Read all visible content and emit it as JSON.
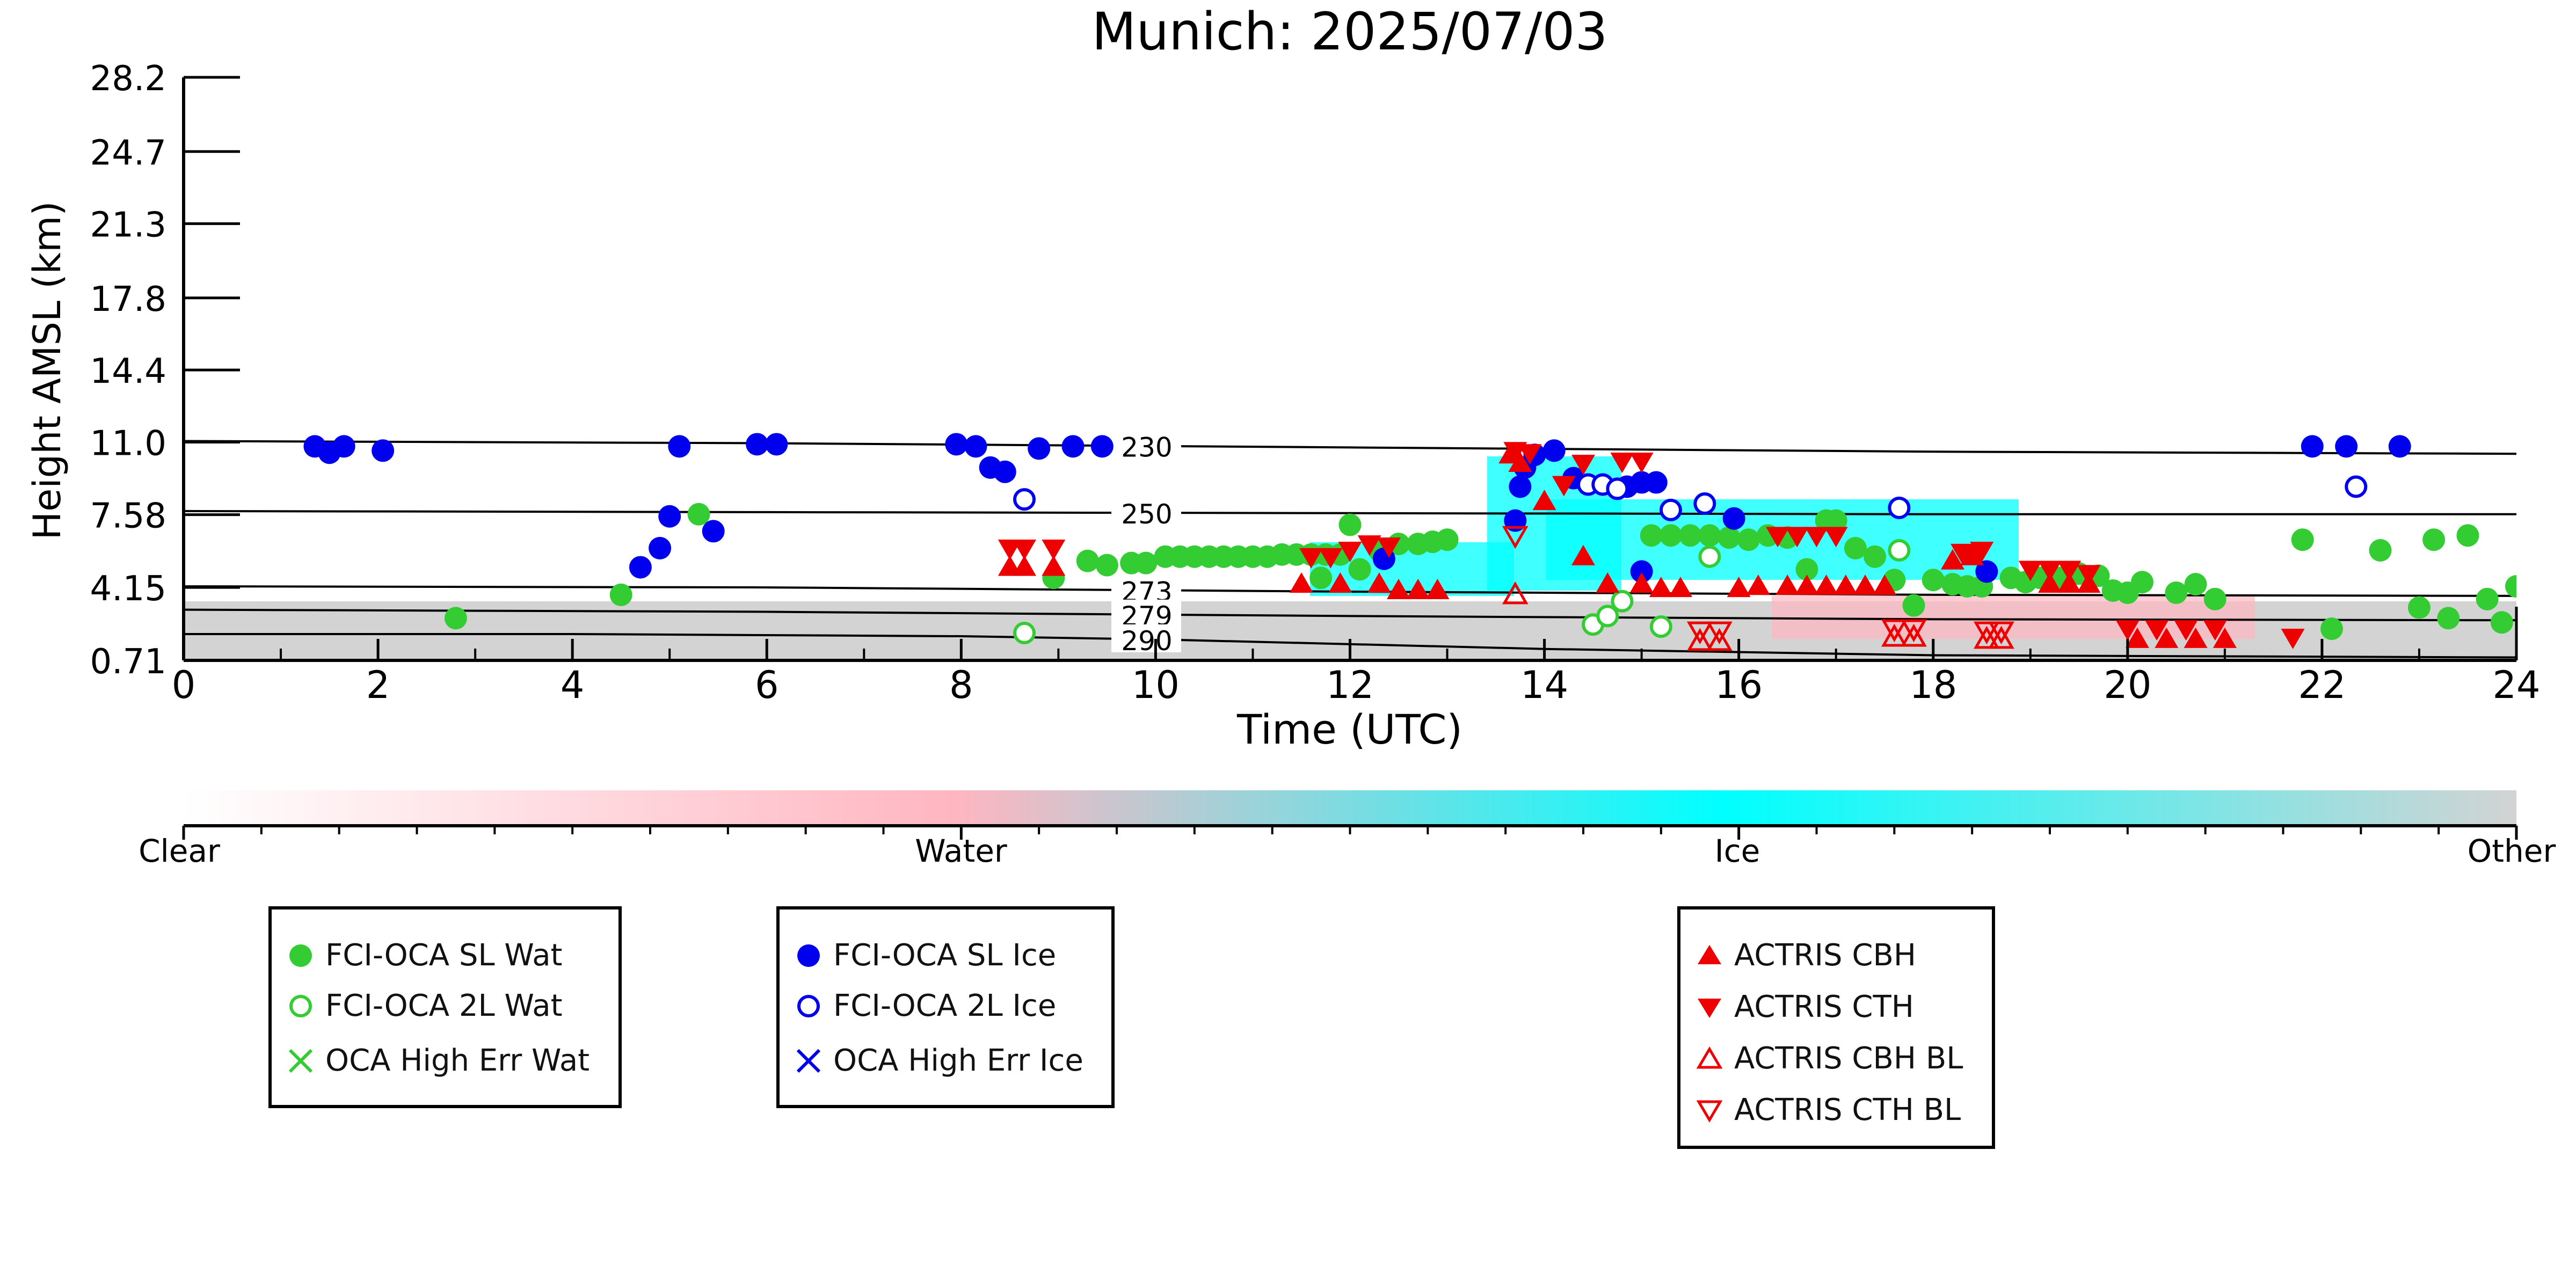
{
  "colors": {
    "water_sl": "#33cc33",
    "ice_sl": "#0000ee",
    "actris": "#ee0000",
    "isotherm": "#000000",
    "class_clear": "#ffffff",
    "class_water": "#ffb6c1",
    "class_ice": "#00ffff",
    "class_other": "#d3d3d3"
  },
  "chart_data": {
    "type": "scatter",
    "title": "Munich: 2025/07/03",
    "xlabel": "Time (UTC)",
    "ylabel": "Height AMSL (km)",
    "xlim": [
      0,
      24
    ],
    "ylim": [
      0.71,
      28.2
    ],
    "x_ticks": [
      0,
      2,
      4,
      6,
      8,
      10,
      12,
      14,
      16,
      18,
      20,
      22,
      24
    ],
    "x_tick_labels": [
      "0",
      "2",
      "4",
      "6",
      "8",
      "10",
      "12",
      "14",
      "16",
      "18",
      "20",
      "22",
      "24"
    ],
    "y_ticks": [
      0.71,
      4.15,
      7.58,
      11.0,
      14.4,
      17.8,
      21.3,
      24.7,
      28.2
    ],
    "y_tick_labels": [
      "0.71",
      "4.15",
      "7.58",
      "11.0",
      "14.4",
      "17.8",
      "21.3",
      "24.7",
      "28.2"
    ],
    "grid": false,
    "isotherms": [
      {
        "label": "230",
        "points": [
          [
            0,
            11.05
          ],
          [
            6,
            10.95
          ],
          [
            12,
            10.75
          ],
          [
            18,
            10.55
          ],
          [
            24,
            10.45
          ]
        ]
      },
      {
        "label": "250",
        "points": [
          [
            0,
            7.75
          ],
          [
            6,
            7.7
          ],
          [
            12,
            7.65
          ],
          [
            18,
            7.6
          ],
          [
            24,
            7.6
          ]
        ]
      },
      {
        "label": "273",
        "points": [
          [
            0,
            4.2
          ],
          [
            6,
            4.15
          ],
          [
            12,
            3.95
          ],
          [
            18,
            3.8
          ],
          [
            24,
            3.75
          ]
        ]
      },
      {
        "label": "279",
        "points": [
          [
            0,
            3.1
          ],
          [
            6,
            3.0
          ],
          [
            12,
            2.8
          ],
          [
            18,
            2.65
          ],
          [
            24,
            2.6
          ]
        ]
      },
      {
        "label": "290",
        "points": [
          [
            0,
            1.95
          ],
          [
            4,
            1.95
          ],
          [
            8,
            1.85
          ],
          [
            10,
            1.7
          ],
          [
            14,
            1.25
          ],
          [
            18,
            0.95
          ],
          [
            24,
            0.85
          ]
        ]
      }
    ],
    "series": [
      {
        "name": "FCI-OCA SL Wat",
        "marker": "filled-circle",
        "points": [
          [
            2.8,
            2.7
          ],
          [
            4.5,
            3.8
          ],
          [
            5.3,
            7.6
          ],
          [
            8.95,
            4.6
          ],
          [
            9.3,
            5.4
          ],
          [
            9.5,
            5.2
          ],
          [
            9.75,
            5.3
          ],
          [
            9.9,
            5.3
          ],
          [
            10.1,
            5.6
          ],
          [
            10.25,
            5.6
          ],
          [
            10.4,
            5.6
          ],
          [
            10.55,
            5.6
          ],
          [
            10.7,
            5.6
          ],
          [
            10.85,
            5.6
          ],
          [
            11.0,
            5.6
          ],
          [
            11.15,
            5.6
          ],
          [
            11.3,
            5.7
          ],
          [
            11.45,
            5.7
          ],
          [
            11.6,
            5.7
          ],
          [
            11.75,
            5.7
          ],
          [
            11.9,
            5.7
          ],
          [
            12.0,
            7.1
          ],
          [
            11.7,
            4.6
          ],
          [
            12.1,
            5.0
          ],
          [
            12.3,
            5.9
          ],
          [
            12.5,
            6.2
          ],
          [
            12.7,
            6.2
          ],
          [
            12.85,
            6.3
          ],
          [
            13.0,
            6.4
          ],
          [
            15.1,
            6.6
          ],
          [
            15.3,
            6.6
          ],
          [
            15.5,
            6.6
          ],
          [
            15.7,
            6.6
          ],
          [
            15.9,
            6.5
          ],
          [
            16.1,
            6.4
          ],
          [
            16.3,
            6.6
          ],
          [
            16.5,
            6.5
          ],
          [
            16.7,
            5.0
          ],
          [
            16.9,
            7.3
          ],
          [
            17.0,
            7.3
          ],
          [
            17.2,
            6.0
          ],
          [
            17.4,
            5.6
          ],
          [
            17.6,
            4.5
          ],
          [
            17.8,
            3.3
          ],
          [
            18.0,
            4.5
          ],
          [
            18.2,
            4.3
          ],
          [
            18.35,
            4.2
          ],
          [
            18.5,
            4.2
          ],
          [
            18.8,
            4.6
          ],
          [
            18.95,
            4.4
          ],
          [
            19.1,
            4.6
          ],
          [
            19.3,
            4.6
          ],
          [
            19.5,
            4.8
          ],
          [
            19.7,
            4.7
          ],
          [
            19.85,
            4.0
          ],
          [
            20.0,
            3.9
          ],
          [
            20.15,
            4.4
          ],
          [
            20.5,
            3.9
          ],
          [
            20.7,
            4.3
          ],
          [
            20.9,
            3.6
          ],
          [
            21.8,
            6.4
          ],
          [
            22.1,
            2.2
          ],
          [
            22.6,
            5.9
          ],
          [
            23.0,
            3.2
          ],
          [
            23.15,
            6.4
          ],
          [
            23.3,
            2.7
          ],
          [
            23.5,
            6.6
          ],
          [
            23.7,
            3.6
          ],
          [
            23.85,
            2.5
          ],
          [
            24.0,
            4.2
          ]
        ]
      },
      {
        "name": "FCI-OCA 2L Wat",
        "marker": "open-circle",
        "points": [
          [
            8.65,
            2.0
          ],
          [
            14.5,
            2.4
          ],
          [
            14.65,
            2.8
          ],
          [
            14.8,
            3.5
          ],
          [
            15.2,
            2.3
          ],
          [
            15.7,
            5.6
          ],
          [
            17.65,
            5.9
          ]
        ]
      },
      {
        "name": "OCA High Err Wat",
        "marker": "x",
        "points": []
      },
      {
        "name": "FCI-OCA SL Ice",
        "marker": "filled-circle",
        "points": [
          [
            1.35,
            10.8
          ],
          [
            1.5,
            10.5
          ],
          [
            1.65,
            10.8
          ],
          [
            2.05,
            10.6
          ],
          [
            4.7,
            5.1
          ],
          [
            4.9,
            6.0
          ],
          [
            5.0,
            7.5
          ],
          [
            5.1,
            10.8
          ],
          [
            5.45,
            6.8
          ],
          [
            5.9,
            10.9
          ],
          [
            6.1,
            10.9
          ],
          [
            7.95,
            10.9
          ],
          [
            8.15,
            10.8
          ],
          [
            8.3,
            9.8
          ],
          [
            8.45,
            9.6
          ],
          [
            8.8,
            10.7
          ],
          [
            9.15,
            10.8
          ],
          [
            9.45,
            10.8
          ],
          [
            12.35,
            5.5
          ],
          [
            13.7,
            7.3
          ],
          [
            13.75,
            8.9
          ],
          [
            13.8,
            9.8
          ],
          [
            13.9,
            10.4
          ],
          [
            14.1,
            10.6
          ],
          [
            14.3,
            9.3
          ],
          [
            14.85,
            8.9
          ],
          [
            15.0,
            9.1
          ],
          [
            15.15,
            9.1
          ],
          [
            15.0,
            4.9
          ],
          [
            15.95,
            7.4
          ],
          [
            18.55,
            4.9
          ],
          [
            21.9,
            10.8
          ],
          [
            22.25,
            10.8
          ],
          [
            22.8,
            10.8
          ]
        ]
      },
      {
        "name": "FCI-OCA 2L Ice",
        "marker": "open-circle",
        "points": [
          [
            8.65,
            8.3
          ],
          [
            14.45,
            9.0
          ],
          [
            14.6,
            9.0
          ],
          [
            14.75,
            8.8
          ],
          [
            15.3,
            7.8
          ],
          [
            15.65,
            8.1
          ],
          [
            17.65,
            7.9
          ],
          [
            22.35,
            8.9
          ]
        ]
      },
      {
        "name": "OCA High Err Ice",
        "marker": "x",
        "points": []
      },
      {
        "name": "ACTRIS CBH",
        "marker": "triangle-up",
        "points": [
          [
            8.5,
            5.1
          ],
          [
            8.65,
            5.1
          ],
          [
            8.95,
            5.1
          ],
          [
            11.5,
            4.3
          ],
          [
            11.9,
            4.3
          ],
          [
            12.3,
            4.3
          ],
          [
            12.5,
            4.0
          ],
          [
            12.7,
            4.0
          ],
          [
            12.9,
            4.0
          ],
          [
            13.65,
            10.4
          ],
          [
            13.75,
            10.0
          ],
          [
            14.0,
            8.2
          ],
          [
            14.4,
            5.6
          ],
          [
            14.65,
            4.3
          ],
          [
            15.0,
            4.3
          ],
          [
            15.2,
            4.1
          ],
          [
            15.4,
            4.1
          ],
          [
            16.0,
            4.1
          ],
          [
            16.2,
            4.2
          ],
          [
            16.5,
            4.2
          ],
          [
            16.7,
            4.2
          ],
          [
            16.9,
            4.2
          ],
          [
            17.1,
            4.2
          ],
          [
            17.3,
            4.2
          ],
          [
            17.5,
            4.2
          ],
          [
            18.2,
            5.4
          ],
          [
            18.4,
            5.6
          ],
          [
            19.2,
            4.3
          ],
          [
            19.4,
            4.3
          ],
          [
            19.6,
            4.3
          ],
          [
            20.1,
            1.7
          ],
          [
            20.4,
            1.7
          ],
          [
            20.7,
            1.7
          ],
          [
            21.0,
            1.7
          ]
        ]
      },
      {
        "name": "ACTRIS CTH",
        "marker": "triangle-down",
        "points": [
          [
            8.5,
            6.0
          ],
          [
            8.65,
            6.0
          ],
          [
            8.95,
            6.0
          ],
          [
            11.6,
            5.6
          ],
          [
            11.8,
            5.6
          ],
          [
            12.0,
            5.9
          ],
          [
            12.2,
            6.2
          ],
          [
            12.4,
            6.1
          ],
          [
            13.7,
            10.6
          ],
          [
            13.85,
            10.5
          ],
          [
            14.2,
            9.0
          ],
          [
            14.4,
            10.0
          ],
          [
            14.8,
            10.1
          ],
          [
            15.0,
            10.1
          ],
          [
            16.4,
            6.6
          ],
          [
            16.6,
            6.6
          ],
          [
            16.8,
            6.6
          ],
          [
            17.0,
            6.6
          ],
          [
            18.3,
            5.8
          ],
          [
            18.5,
            5.9
          ],
          [
            19.0,
            5.0
          ],
          [
            19.2,
            5.0
          ],
          [
            19.4,
            5.0
          ],
          [
            19.6,
            4.8
          ],
          [
            20.0,
            2.2
          ],
          [
            20.3,
            2.2
          ],
          [
            20.6,
            2.2
          ],
          [
            20.9,
            2.2
          ],
          [
            21.7,
            1.8
          ]
        ]
      },
      {
        "name": "ACTRIS CBH BL",
        "marker": "open-triangle-up",
        "points": [
          [
            13.7,
            3.8
          ],
          [
            15.6,
            1.6
          ],
          [
            15.8,
            1.6
          ],
          [
            17.6,
            1.8
          ],
          [
            17.8,
            1.8
          ],
          [
            18.55,
            1.7
          ],
          [
            18.7,
            1.7
          ]
        ]
      },
      {
        "name": "ACTRIS CTH BL",
        "marker": "open-triangle-down",
        "points": [
          [
            13.7,
            6.6
          ],
          [
            15.6,
            2.1
          ],
          [
            15.8,
            2.1
          ],
          [
            17.6,
            2.2
          ],
          [
            17.8,
            2.2
          ],
          [
            18.55,
            2.1
          ],
          [
            18.7,
            2.1
          ]
        ]
      }
    ],
    "colorbar": {
      "labels": [
        "Clear",
        "Water",
        "Ice",
        "Other"
      ]
    }
  },
  "legend": {
    "water": [
      "FCI-OCA SL Wat",
      "FCI-OCA 2L Wat",
      "OCA High Err Wat"
    ],
    "ice": [
      "FCI-OCA SL Ice",
      "FCI-OCA 2L Ice",
      "OCA High Err Ice"
    ],
    "actris": [
      "ACTRIS CBH",
      "ACTRIS CTH",
      "ACTRIS CBH BL",
      "ACTRIS CTH BL"
    ]
  }
}
